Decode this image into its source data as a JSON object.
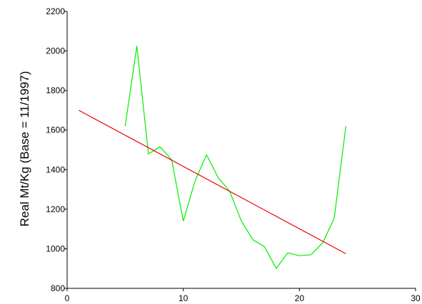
{
  "chart_data": {
    "type": "line",
    "title": "",
    "xlabel": "",
    "ylabel": "Real Mt/Kg (Base = 11/1997)",
    "xlim": [
      0,
      30
    ],
    "ylim": [
      800,
      2200
    ],
    "x_ticks": [
      0,
      10,
      20,
      30
    ],
    "x_tick_labels": [
      "0",
      "10",
      "20",
      "30"
    ],
    "y_ticks": [
      800,
      1000,
      1200,
      1400,
      1600,
      1800,
      2000,
      2200
    ],
    "y_tick_labels": [
      "800",
      "1000",
      "1200",
      "1400",
      "1600",
      "1800",
      "2000",
      "2200"
    ],
    "grid": false,
    "legend": "none",
    "series": [
      {
        "color": "#00ee00",
        "x": [
          5,
          6,
          7,
          8,
          9,
          10,
          11,
          12,
          13,
          14,
          15,
          16,
          17,
          18,
          19,
          20,
          21,
          22,
          23,
          24
        ],
        "y": [
          1620,
          2025,
          1480,
          1515,
          1450,
          1140,
          1340,
          1475,
          1360,
          1290,
          1140,
          1045,
          1010,
          900,
          980,
          965,
          970,
          1030,
          1155,
          1620
        ]
      },
      {
        "color": "#ee0000",
        "x": [
          1,
          24
        ],
        "y": [
          1700,
          975
        ]
      }
    ]
  }
}
